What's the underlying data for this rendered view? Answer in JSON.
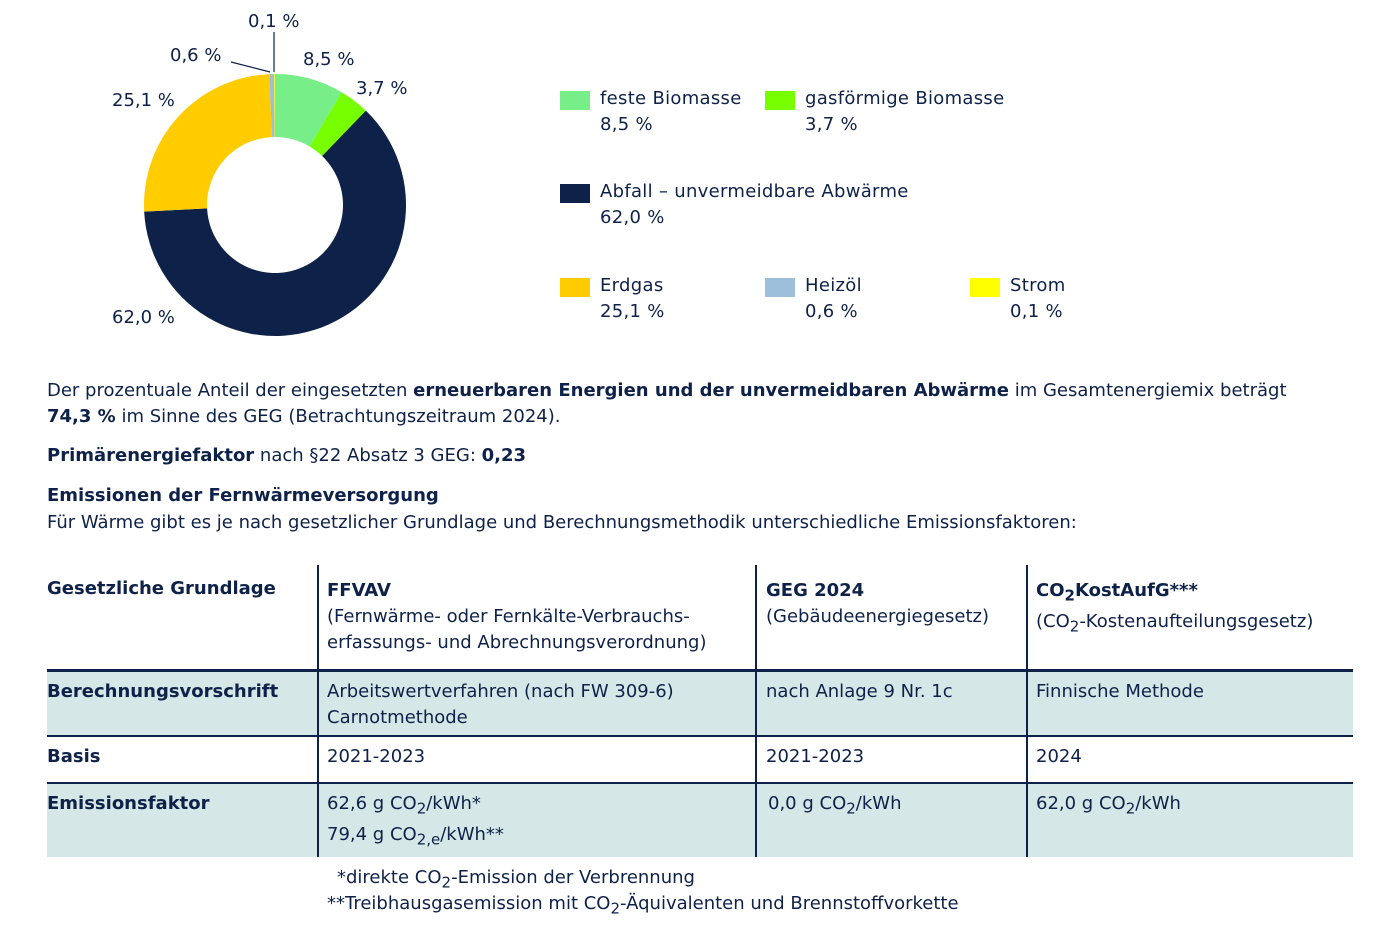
{
  "chart_data": {
    "type": "donut",
    "slices": [
      {
        "name": "feste Biomasse",
        "value": 8.5,
        "label": "8,5 %",
        "color": "#77ee88"
      },
      {
        "name": "gasförmige Biomasse",
        "value": 3.7,
        "label": "3,7 %",
        "color": "#77ff00"
      },
      {
        "name": "Abfall – unvermeidbare Abwärme",
        "value": 62.0,
        "label": "62,0 %",
        "color": "#0e2148"
      },
      {
        "name": "Erdgas",
        "value": 25.1,
        "label": "25,1 %",
        "color": "#ffcc00"
      },
      {
        "name": "Heizöl",
        "value": 0.6,
        "label": "0,6 %",
        "color": "#9ebfd9"
      },
      {
        "name": "Strom",
        "value": 0.1,
        "label": "0,1 %",
        "color": "#ffff00"
      }
    ],
    "legend_placement": "right"
  },
  "text": {
    "p1_a": "Der prozentuale Anteil der eingesetzten ",
    "p1_b": "erneuerbaren Energien und der unvermeidbaren Abwärme",
    "p1_c": " im Gesamtenergiemix beträgt",
    "p1_d": "74,3 %",
    "p1_e": " im Sinne des GEG (Betrachtungszeitraum 2024).",
    "p2_a": "Primärenergiefaktor",
    "p2_b": " nach §22 Absatz 3 GEG: ",
    "p2_c": "0,23",
    "h3": "Emissionen der Fernwärmeversorgung",
    "p3": "Für Wärme gibt es je nach gesetzlicher Grundlage und Berechnungsmethodik unterschiedliche Emissionsfaktoren:"
  },
  "table": {
    "h_col0": "Gesetzliche Grundlage",
    "h_col1_title": "FFVAV",
    "h_col1_l1": "(Fernwärme- oder Fernkälte-Verbrauchs-",
    "h_col1_l2": "erfassungs- und Abrechnungsverordnung)",
    "h_col2_title": "GEG 2024",
    "h_col2_l1": "(Gebäudeenergiegesetz)",
    "h_col3_a": "CO",
    "h_col3_sub": "2",
    "h_col3_b": "KostAufG***",
    "h_col3_l1_a": "(CO",
    "h_col3_l1_sub": "2",
    "h_col3_l1_b": "-Kostenaufteilungsgesetz)",
    "r1_label": "Berechnungsvorschrift",
    "r1_c1_l1": "Arbeitswertverfahren (nach FW 309-6)",
    "r1_c1_l2": "Carnotmethode",
    "r1_c2": "nach Anlage 9 Nr. 1c",
    "r1_c3": "Finnische Methode",
    "r2_label": "Basis",
    "r2_c1": "2021-2023",
    "r2_c2": "2021-2023",
    "r2_c3": "2024",
    "r3_label": "Emissionsfaktor",
    "r3_c1_l1_a": "62,6 g CO",
    "r3_c1_l1_sub": "2",
    "r3_c1_l1_b": "/kWh*",
    "r3_c1_l2_a": "79,4 g CO",
    "r3_c1_l2_sub": "2,e",
    "r3_c1_l2_b": "/kWh**",
    "r3_c2_a": "0,0 g CO",
    "r3_c2_sub": "2",
    "r3_c2_b": "/kWh",
    "r3_c3_a": "62,0 g CO",
    "r3_c3_sub": "2",
    "r3_c3_b": "/kWh"
  },
  "footnotes": {
    "f1_a": "*direkte CO",
    "f1_sub": "2",
    "f1_b": "-Emission der Verbrennung",
    "f2_a": "**Treibhausgasemission mit CO",
    "f2_sub": "2",
    "f2_b": "-Äquivalenten und Brennstoffvorkette"
  }
}
